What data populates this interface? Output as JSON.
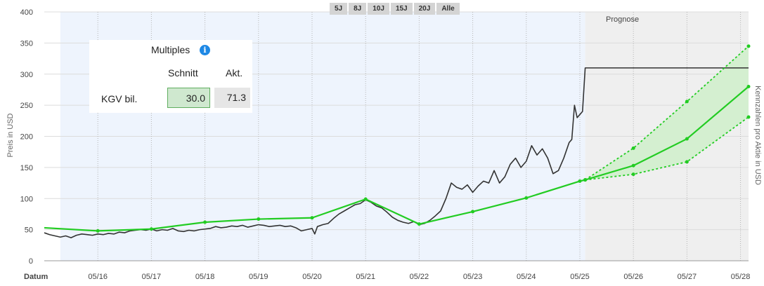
{
  "period_buttons": [
    "5J",
    "8J",
    "10J",
    "15J",
    "20J",
    "Alle"
  ],
  "multiples": {
    "title": "Multiples",
    "col_avg": "Schnitt",
    "col_current": "Akt.",
    "row_label": "KGV bil.",
    "avg_value": "30.0",
    "current_value": "71.3"
  },
  "colors": {
    "price": "#333333",
    "fair_value": "#22cc22",
    "forecast_band": "#d4efd0",
    "history_background": "#eef4fd",
    "forecast_background": "#efefef"
  },
  "chart_data": {
    "type": "line",
    "forecast_label": "Prognose",
    "xlabel": "Datum",
    "ylabel_left": "Preis in USD",
    "ylabel_right": "Kennzahlen pro Aktie in USD",
    "ylim": [
      0,
      400
    ],
    "y_ticks": [
      0,
      50,
      100,
      150,
      200,
      250,
      300,
      350,
      400
    ],
    "x_ticks": [
      "05/16",
      "05/17",
      "05/18",
      "05/19",
      "05/20",
      "05/21",
      "05/22",
      "05/23",
      "05/24",
      "05/25",
      "05/26",
      "05/27",
      "05/28"
    ],
    "x_range": [
      2015.2,
      2028.35
    ],
    "forecast_start": 2025.3,
    "series": [
      {
        "x": [
          2015.2,
          2015.3,
          2015.4,
          2015.5,
          2015.6,
          2015.7,
          2015.8,
          2015.9,
          2016.0,
          2016.1,
          2016.2,
          2016.3,
          2016.4,
          2016.5,
          2016.6,
          2016.7,
          2016.8,
          2016.9,
          2017.0,
          2017.1,
          2017.2,
          2017.3,
          2017.4,
          2017.5,
          2017.6,
          2017.7,
          2017.8,
          2017.9,
          2018.0,
          2018.1,
          2018.2,
          2018.3,
          2018.4,
          2018.5,
          2018.6,
          2018.7,
          2018.8,
          2018.9,
          2019.0,
          2019.1,
          2019.2,
          2019.3,
          2019.4,
          2019.5,
          2019.6,
          2019.7,
          2019.8,
          2019.9,
          2020.0,
          2020.1,
          2020.2,
          2020.25,
          2020.3,
          2020.4,
          2020.5,
          2020.6,
          2020.7,
          2020.8,
          2020.9,
          2021.0,
          2021.1,
          2021.2,
          2021.3,
          2021.4,
          2021.5,
          2021.6,
          2021.7,
          2021.8,
          2021.9,
          2022.0,
          2022.1,
          2022.2,
          2022.3,
          2022.4,
          2022.5,
          2022.6,
          2022.7,
          2022.8,
          2022.9,
          2023.0,
          2023.1,
          2023.2,
          2023.3,
          2023.4,
          2023.5,
          2023.6,
          2023.7,
          2023.8,
          2023.9,
          2024.0,
          2024.1,
          2024.2,
          2024.3,
          2024.4,
          2024.5,
          2024.6,
          2024.7,
          2024.8,
          2024.9,
          2025.0,
          2025.05,
          2025.1,
          2025.15,
          2025.2,
          2025.25,
          2025.3,
          2028.35
        ],
        "values": [
          45,
          42,
          40,
          38,
          40,
          37,
          41,
          43,
          42,
          41,
          43,
          42,
          44,
          43,
          46,
          45,
          48,
          49,
          50,
          49,
          51,
          48,
          50,
          49,
          52,
          48,
          47,
          49,
          48,
          50,
          51,
          52,
          55,
          53,
          54,
          56,
          55,
          57,
          54,
          56,
          58,
          57,
          55,
          56,
          57,
          55,
          56,
          53,
          48,
          50,
          52,
          43,
          55,
          58,
          60,
          68,
          75,
          80,
          85,
          90,
          92,
          98,
          94,
          88,
          85,
          78,
          70,
          65,
          62,
          60,
          63,
          58,
          60,
          65,
          72,
          80,
          100,
          125,
          118,
          115,
          122,
          110,
          120,
          128,
          125,
          145,
          125,
          135,
          155,
          165,
          150,
          160,
          185,
          170,
          180,
          165,
          140,
          145,
          165,
          190,
          195,
          250,
          230,
          235,
          240,
          310,
          310
        ],
        "name": ""
      },
      {
        "x": [
          2015.2,
          2016.2,
          2017.2,
          2018.2,
          2019.2,
          2020.2,
          2021.2,
          2022.2,
          2023.2,
          2024.2,
          2025.2,
          2025.3,
          2026.2,
          2027.2,
          2028.35
        ],
        "values": [
          53,
          48,
          51,
          62,
          67,
          69,
          99,
          59,
          79,
          101,
          128,
          130,
          153,
          196,
          280
        ],
        "name": ""
      },
      {
        "x": [
          2025.3,
          2026.2,
          2027.2,
          2028.35
        ],
        "values": [
          130,
          181,
          256,
          345
        ],
        "name": ""
      },
      {
        "x": [
          2025.3,
          2026.2,
          2027.2,
          2028.35
        ],
        "values": [
          130,
          139,
          159,
          231
        ],
        "name": ""
      }
    ],
    "grid": true
  }
}
